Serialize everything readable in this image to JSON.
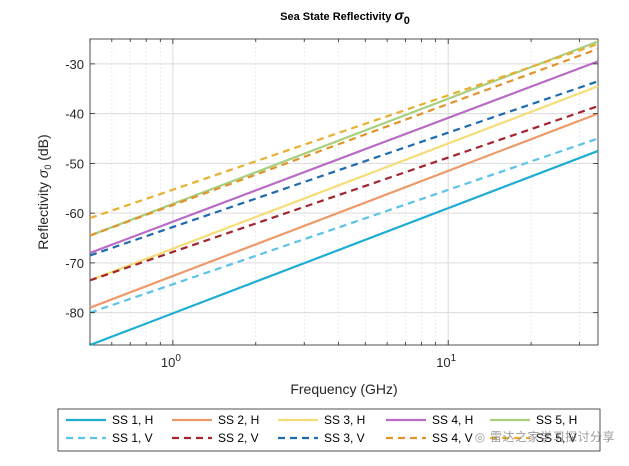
{
  "watermark": "◎ 雷达之家学习探讨分享",
  "chart_data": {
    "type": "line",
    "title": "Sea State Reflectivity",
    "title_symbol": "σ",
    "title_subscript": "0",
    "xlabel": "Frequency (GHz)",
    "ylabel_prefix": "Reflectivity ",
    "ylabel_symbol": "σ",
    "ylabel_subscript": "0",
    "ylabel_suffix": " (dB)",
    "xscale": "log",
    "xlim": [
      0.5,
      35
    ],
    "ylim": [
      -86.5,
      -25
    ],
    "grid": true,
    "legend_position": "bottom-outside",
    "xticks": [
      {
        "value": 1,
        "base": "10",
        "exp": "0"
      },
      {
        "value": 10,
        "base": "10",
        "exp": "1"
      }
    ],
    "yticks": [
      -80,
      -70,
      -60,
      -50,
      -40,
      -30
    ],
    "series": [
      {
        "name": "SS 1, H",
        "color": "#1fadd4",
        "dash": "solid",
        "x": [
          0.5,
          35
        ],
        "y": [
          -86.5,
          -47.5
        ]
      },
      {
        "name": "SS 2, H",
        "color": "#ec9a6a",
        "dash": "solid",
        "x": [
          0.5,
          35
        ],
        "y": [
          -79.0,
          -40.0
        ]
      },
      {
        "name": "SS 3, H",
        "color": "#f5dd78",
        "dash": "solid",
        "x": [
          0.5,
          35
        ],
        "y": [
          -73.5,
          -34.5
        ]
      },
      {
        "name": "SS 4, H",
        "color": "#b96cc4",
        "dash": "solid",
        "x": [
          0.5,
          35
        ],
        "y": [
          -68.0,
          -29.5
        ]
      },
      {
        "name": "SS 5, H",
        "color": "#a8cf7e",
        "dash": "solid",
        "x": [
          0.5,
          35
        ],
        "y": [
          -64.5,
          -25.5
        ]
      },
      {
        "name": "SS 1, V",
        "color": "#5cc3e6",
        "dash": "dashed",
        "x": [
          0.5,
          35
        ],
        "y": [
          -80.0,
          -45.0
        ]
      },
      {
        "name": "SS 2, V",
        "color": "#a2252f",
        "dash": "dashed",
        "x": [
          0.5,
          35
        ],
        "y": [
          -73.5,
          -38.5
        ]
      },
      {
        "name": "SS 3, V",
        "color": "#1f6bb0",
        "dash": "dashed",
        "x": [
          0.5,
          35
        ],
        "y": [
          -68.5,
          -33.5
        ]
      },
      {
        "name": "SS 4, V",
        "color": "#e0942b",
        "dash": "dashed",
        "x": [
          0.5,
          35
        ],
        "y": [
          -64.5,
          -27.0
        ]
      },
      {
        "name": "SS 5, V",
        "color": "#e8b030",
        "dash": "dashed",
        "x": [
          0.5,
          35
        ],
        "y": [
          -61.0,
          -26.0
        ]
      }
    ]
  }
}
